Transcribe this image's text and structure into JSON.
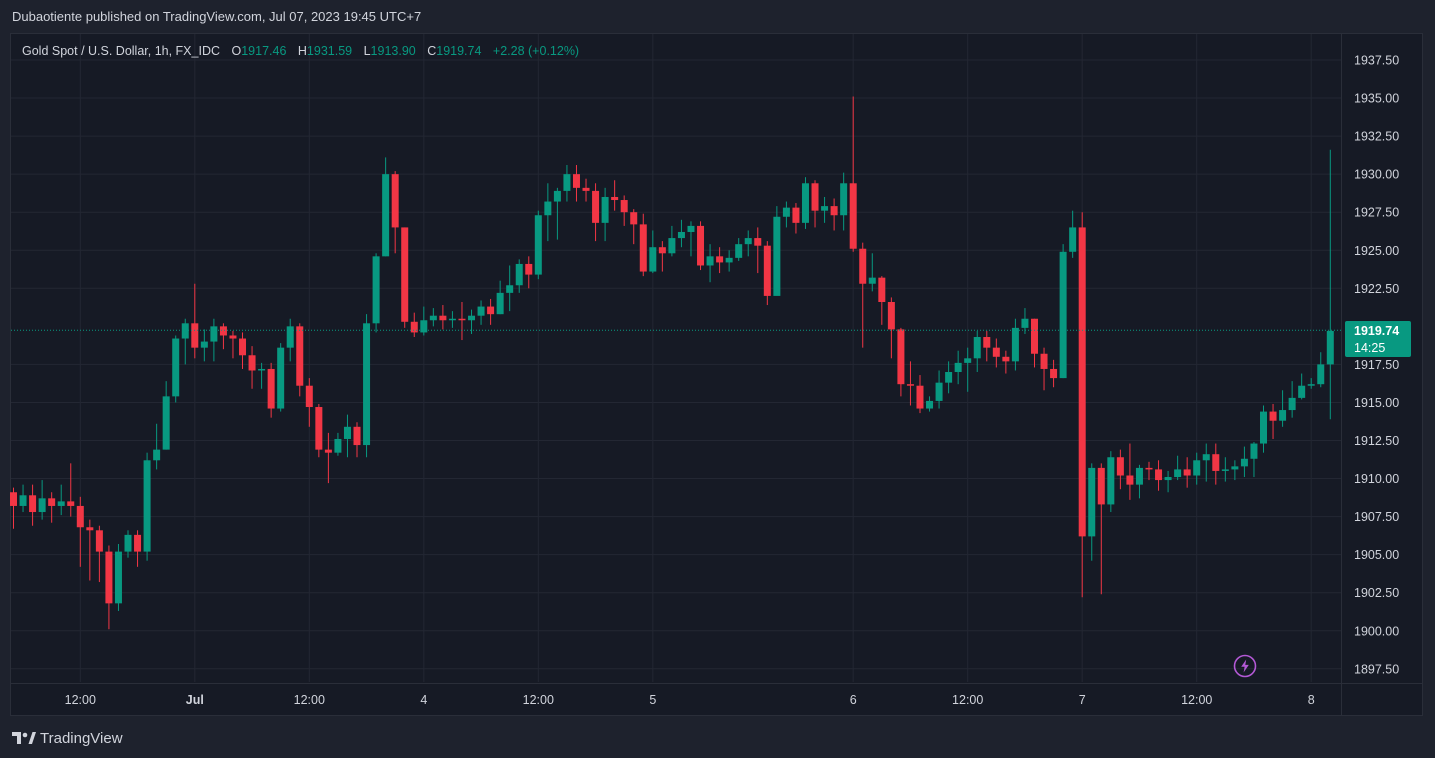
{
  "header": {
    "published_line": "Dubaotiente published on TradingView.com, Jul 07, 2023 19:45 UTC+7"
  },
  "legend": {
    "symbol": "Gold Spot / U.S. Dollar, 1h, FX_IDC",
    "open_label": "O",
    "open_value": "1917.46",
    "high_label": "H",
    "high_value": "1931.59",
    "low_label": "L",
    "low_value": "1913.90",
    "close_label": "C",
    "close_value": "1919.74",
    "change": "+2.28 (+0.12%)"
  },
  "last_price": {
    "price": "1919.74",
    "countdown": "14:25"
  },
  "footer": {
    "brand": "TradingView"
  },
  "colors": {
    "up": "#089981",
    "down": "#f23645",
    "background": "#161a25",
    "grid": "#232733",
    "text": "#d1d4dc",
    "bolt": "#b459d6"
  },
  "chart_data": {
    "type": "candlestick",
    "y_ticks": [
      "1937.50",
      "1935.00",
      "1932.50",
      "1930.00",
      "1927.50",
      "1925.00",
      "1922.50",
      "1917.50",
      "1915.00",
      "1912.50",
      "1910.00",
      "1907.50",
      "1905.00",
      "1902.50",
      "1900.00",
      "1897.50"
    ],
    "x_ticks": [
      {
        "label": "12:00",
        "index": 7
      },
      {
        "label": "Jul",
        "index": 19,
        "bold": true
      },
      {
        "label": "12:00",
        "index": 31
      },
      {
        "label": "4",
        "index": 43
      },
      {
        "label": "12:00",
        "index": 55
      },
      {
        "label": "5",
        "index": 67
      },
      {
        "label": "6",
        "index": 88
      },
      {
        "label": "12:00",
        "index": 100
      },
      {
        "label": "7",
        "index": 112
      },
      {
        "label": "12:00",
        "index": 124
      },
      {
        "label": "8",
        "index": 136
      }
    ],
    "last_price": 1919.74,
    "ylim": [
      1896.5,
      1939.5
    ],
    "candles": [
      [
        1909.1,
        1908.2,
        1909.4,
        1906.7
      ],
      [
        1908.2,
        1908.9,
        1909.6,
        1907.8
      ],
      [
        1908.9,
        1907.8,
        1909.6,
        1906.9
      ],
      [
        1907.8,
        1908.7,
        1909.9,
        1907.3
      ],
      [
        1908.7,
        1908.2,
        1909.1,
        1907.1
      ],
      [
        1908.2,
        1908.5,
        1909.6,
        1907.6
      ],
      [
        1908.5,
        1908.2,
        1911.0,
        1907.5
      ],
      [
        1908.2,
        1906.8,
        1908.8,
        1904.2
      ],
      [
        1906.8,
        1906.6,
        1907.3,
        1903.3
      ],
      [
        1906.6,
        1905.2,
        1906.9,
        1903.2
      ],
      [
        1905.2,
        1901.8,
        1905.6,
        1900.1
      ],
      [
        1901.8,
        1905.2,
        1905.7,
        1901.3
      ],
      [
        1905.2,
        1906.3,
        1906.6,
        1904.8
      ],
      [
        1906.3,
        1905.2,
        1906.6,
        1904.2
      ],
      [
        1905.2,
        1911.2,
        1911.7,
        1904.6
      ],
      [
        1911.2,
        1911.9,
        1913.6,
        1910.6
      ],
      [
        1911.9,
        1915.4,
        1916.4,
        1911.9
      ],
      [
        1915.4,
        1919.2,
        1919.4,
        1915.0
      ],
      [
        1919.2,
        1920.2,
        1920.5,
        1917.5
      ],
      [
        1920.2,
        1918.6,
        1922.8,
        1917.9
      ],
      [
        1918.6,
        1919.0,
        1919.8,
        1917.7
      ],
      [
        1919.0,
        1920.0,
        1920.5,
        1917.7
      ],
      [
        1920.0,
        1919.4,
        1920.2,
        1918.5
      ],
      [
        1919.4,
        1919.2,
        1919.7,
        1917.9
      ],
      [
        1919.2,
        1918.1,
        1919.6,
        1917.2
      ],
      [
        1918.1,
        1917.1,
        1918.7,
        1915.9
      ],
      [
        1917.1,
        1917.2,
        1917.6,
        1915.9
      ],
      [
        1917.2,
        1914.6,
        1917.6,
        1914.0
      ],
      [
        1914.6,
        1918.6,
        1918.9,
        1914.4
      ],
      [
        1918.6,
        1920.0,
        1920.5,
        1917.7
      ],
      [
        1920.0,
        1916.1,
        1920.2,
        1915.4
      ],
      [
        1916.1,
        1914.7,
        1916.6,
        1913.4
      ],
      [
        1914.7,
        1911.9,
        1914.9,
        1911.4
      ],
      [
        1911.9,
        1911.7,
        1913.0,
        1909.7
      ],
      [
        1911.7,
        1912.6,
        1913.0,
        1911.5
      ],
      [
        1912.6,
        1913.4,
        1914.2,
        1911.4
      ],
      [
        1913.4,
        1912.2,
        1913.7,
        1911.4
      ],
      [
        1912.2,
        1920.2,
        1920.8,
        1911.4
      ],
      [
        1920.2,
        1924.6,
        1924.8,
        1919.6
      ],
      [
        1924.6,
        1930.0,
        1931.1,
        1924.6
      ],
      [
        1930.0,
        1926.5,
        1930.2,
        1924.8
      ],
      [
        1926.5,
        1920.3,
        1926.5,
        1919.9
      ],
      [
        1920.3,
        1919.6,
        1920.9,
        1919.3
      ],
      [
        1919.6,
        1920.4,
        1921.3,
        1919.4
      ],
      [
        1920.4,
        1920.7,
        1921.2,
        1920.0
      ],
      [
        1920.7,
        1920.4,
        1921.4,
        1919.8
      ],
      [
        1920.4,
        1920.5,
        1921.0,
        1919.9
      ],
      [
        1920.5,
        1920.4,
        1921.6,
        1919.1
      ],
      [
        1920.4,
        1920.7,
        1921.1,
        1919.5
      ],
      [
        1920.7,
        1921.3,
        1921.7,
        1920.1
      ],
      [
        1921.3,
        1920.8,
        1921.8,
        1920.1
      ],
      [
        1920.8,
        1922.2,
        1923.0,
        1920.8
      ],
      [
        1922.2,
        1922.7,
        1924.0,
        1921.0
      ],
      [
        1922.7,
        1924.1,
        1924.4,
        1922.2
      ],
      [
        1924.1,
        1923.4,
        1924.6,
        1922.5
      ],
      [
        1923.4,
        1927.3,
        1927.6,
        1923.1
      ],
      [
        1927.3,
        1928.2,
        1929.4,
        1925.6
      ],
      [
        1928.2,
        1928.9,
        1929.1,
        1925.7
      ],
      [
        1928.9,
        1930.0,
        1930.6,
        1928.2
      ],
      [
        1930.0,
        1929.1,
        1930.6,
        1928.2
      ],
      [
        1929.1,
        1928.9,
        1929.7,
        1928.2
      ],
      [
        1928.9,
        1926.8,
        1929.4,
        1925.6
      ],
      [
        1926.8,
        1928.5,
        1929.1,
        1925.6
      ],
      [
        1928.5,
        1928.3,
        1929.6,
        1927.6
      ],
      [
        1928.3,
        1927.5,
        1928.6,
        1926.6
      ],
      [
        1927.5,
        1926.7,
        1927.7,
        1925.4
      ],
      [
        1926.7,
        1923.6,
        1927.4,
        1923.3
      ],
      [
        1923.6,
        1925.2,
        1926.3,
        1923.5
      ],
      [
        1925.2,
        1924.8,
        1925.6,
        1923.6
      ],
      [
        1924.8,
        1925.8,
        1926.6,
        1924.6
      ],
      [
        1925.8,
        1926.2,
        1927.0,
        1925.2
      ],
      [
        1926.2,
        1926.6,
        1926.9,
        1924.6
      ],
      [
        1926.6,
        1924.0,
        1926.9,
        1923.7
      ],
      [
        1924.0,
        1924.6,
        1925.4,
        1922.9
      ],
      [
        1924.6,
        1924.2,
        1925.2,
        1923.5
      ],
      [
        1924.2,
        1924.5,
        1925.0,
        1923.6
      ],
      [
        1924.5,
        1925.4,
        1925.8,
        1924.3
      ],
      [
        1925.4,
        1925.8,
        1926.3,
        1924.6
      ],
      [
        1925.8,
        1925.3,
        1926.5,
        1923.5
      ],
      [
        1925.3,
        1922.0,
        1925.6,
        1921.4
      ],
      [
        1922.0,
        1927.2,
        1927.9,
        1922.3
      ],
      [
        1927.2,
        1927.8,
        1928.2,
        1926.5
      ],
      [
        1927.8,
        1926.8,
        1928.1,
        1926.1
      ],
      [
        1926.8,
        1929.4,
        1929.8,
        1926.4
      ],
      [
        1929.4,
        1927.6,
        1929.6,
        1926.5
      ],
      [
        1927.6,
        1927.9,
        1928.5,
        1926.8
      ],
      [
        1927.9,
        1927.3,
        1928.4,
        1926.3
      ],
      [
        1927.3,
        1929.4,
        1930.1,
        1926.3
      ],
      [
        1929.4,
        1925.1,
        1935.1,
        1924.9
      ],
      [
        1925.1,
        1922.8,
        1925.5,
        1918.6
      ],
      [
        1922.8,
        1923.2,
        1924.8,
        1922.3
      ],
      [
        1923.2,
        1921.6,
        1923.3,
        1920.1
      ],
      [
        1921.6,
        1919.8,
        1921.9,
        1917.9
      ],
      [
        1919.8,
        1916.2,
        1919.9,
        1915.4
      ],
      [
        1916.2,
        1916.1,
        1917.7,
        1914.8
      ],
      [
        1916.1,
        1914.6,
        1916.8,
        1914.3
      ],
      [
        1914.6,
        1915.1,
        1915.4,
        1914.4
      ],
      [
        1915.1,
        1916.3,
        1917.1,
        1914.6
      ],
      [
        1916.3,
        1917.0,
        1917.7,
        1915.6
      ],
      [
        1917.0,
        1917.6,
        1918.4,
        1916.2
      ],
      [
        1917.6,
        1917.9,
        1918.6,
        1915.7
      ],
      [
        1917.9,
        1919.3,
        1919.7,
        1917.0
      ],
      [
        1919.3,
        1918.6,
        1919.7,
        1917.7
      ],
      [
        1918.6,
        1918.0,
        1919.2,
        1917.3
      ],
      [
        1918.0,
        1917.7,
        1918.4,
        1916.9
      ],
      [
        1917.7,
        1919.9,
        1920.5,
        1917.1
      ],
      [
        1919.9,
        1920.5,
        1921.2,
        1919.5
      ],
      [
        1920.5,
        1918.2,
        1920.5,
        1917.3
      ],
      [
        1918.2,
        1917.2,
        1918.6,
        1915.8
      ],
      [
        1917.2,
        1916.6,
        1917.8,
        1916.0
      ],
      [
        1916.6,
        1924.9,
        1925.4,
        1916.6
      ],
      [
        1924.9,
        1926.5,
        1927.6,
        1924.5
      ],
      [
        1926.5,
        1906.2,
        1927.5,
        1902.2
      ],
      [
        1906.2,
        1910.7,
        1911.0,
        1904.6
      ],
      [
        1910.7,
        1908.3,
        1911.0,
        1902.4
      ],
      [
        1908.3,
        1911.4,
        1911.8,
        1907.8
      ],
      [
        1911.4,
        1910.2,
        1911.9,
        1909.3
      ],
      [
        1910.2,
        1909.6,
        1912.3,
        1908.6
      ],
      [
        1909.6,
        1910.7,
        1910.9,
        1908.7
      ],
      [
        1910.7,
        1910.6,
        1911.1,
        1909.9
      ],
      [
        1910.6,
        1909.9,
        1911.2,
        1909.2
      ],
      [
        1909.9,
        1910.1,
        1910.5,
        1909.1
      ],
      [
        1910.1,
        1910.6,
        1911.5,
        1909.9
      ],
      [
        1910.6,
        1910.2,
        1911.4,
        1909.4
      ],
      [
        1910.2,
        1911.2,
        1911.7,
        1909.6
      ],
      [
        1911.2,
        1911.6,
        1912.3,
        1909.8
      ],
      [
        1911.6,
        1910.5,
        1912.3,
        1909.6
      ],
      [
        1910.5,
        1910.6,
        1911.4,
        1909.8
      ],
      [
        1910.6,
        1910.8,
        1911.2,
        1909.9
      ],
      [
        1910.8,
        1911.3,
        1912.1,
        1910.1
      ],
      [
        1911.3,
        1912.3,
        1912.4,
        1910.1
      ],
      [
        1912.3,
        1914.4,
        1914.8,
        1911.7
      ],
      [
        1914.4,
        1913.8,
        1914.9,
        1912.6
      ],
      [
        1913.8,
        1914.5,
        1915.8,
        1913.4
      ],
      [
        1914.5,
        1915.3,
        1916.4,
        1914.0
      ],
      [
        1915.3,
        1916.1,
        1916.9,
        1915.2
      ],
      [
        1916.1,
        1916.2,
        1916.6,
        1915.9
      ],
      [
        1916.2,
        1917.5,
        1918.3,
        1916.0
      ],
      [
        1917.5,
        1919.7,
        1931.6,
        1913.9
      ]
    ]
  }
}
